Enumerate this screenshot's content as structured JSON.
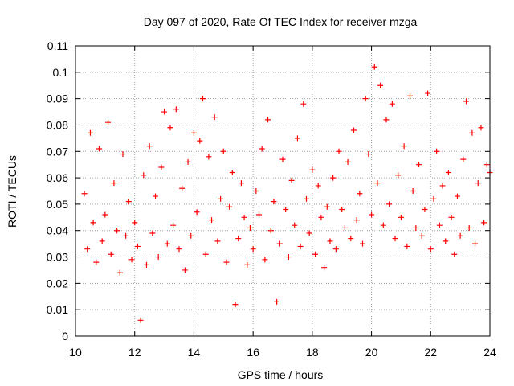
{
  "chart_data": {
    "type": "scatter",
    "title": "Day 097 of 2020, Rate Of TEC Index for receiver mzga",
    "xlabel": "GPS time / hours",
    "ylabel": "ROTI / TECUs",
    "xlim": [
      10,
      24
    ],
    "ylim": [
      0,
      0.11
    ],
    "x_ticks": [
      10,
      12,
      14,
      16,
      18,
      20,
      22,
      24
    ],
    "x_tick_labels": [
      "10",
      "12",
      "14",
      "16",
      "18",
      "20",
      "22",
      "24"
    ],
    "y_ticks": [
      0,
      0.01,
      0.02,
      0.03,
      0.04,
      0.05,
      0.06,
      0.07,
      0.08,
      0.09,
      0.1,
      0.11
    ],
    "y_tick_labels": [
      "0",
      "0.01",
      "0.02",
      "0.03",
      "0.04",
      "0.05",
      "0.06",
      "0.07",
      "0.08",
      "0.09",
      "0.1",
      "0.11"
    ],
    "grid": true,
    "marker": "+",
    "series": [
      {
        "name": "ROTI",
        "color": "#ff0000",
        "x": [
          10.3,
          10.4,
          10.5,
          10.6,
          10.7,
          10.8,
          10.9,
          11.0,
          11.1,
          11.2,
          11.3,
          11.4,
          11.5,
          11.6,
          11.7,
          11.8,
          11.9,
          12.0,
          12.1,
          12.2,
          12.3,
          12.4,
          12.5,
          12.6,
          12.7,
          12.8,
          12.9,
          13.0,
          13.1,
          13.2,
          13.3,
          13.4,
          13.5,
          13.6,
          13.7,
          13.8,
          13.9,
          14.0,
          14.1,
          14.2,
          14.3,
          14.4,
          14.5,
          14.6,
          14.7,
          14.8,
          14.9,
          15.0,
          15.1,
          15.2,
          15.3,
          15.4,
          15.5,
          15.6,
          15.7,
          15.8,
          15.9,
          16.0,
          16.1,
          16.2,
          16.3,
          16.4,
          16.5,
          16.6,
          16.7,
          16.8,
          16.9,
          17.0,
          17.1,
          17.2,
          17.3,
          17.4,
          17.5,
          17.6,
          17.7,
          17.8,
          17.9,
          18.0,
          18.1,
          18.2,
          18.3,
          18.4,
          18.5,
          18.6,
          18.7,
          18.8,
          18.9,
          19.0,
          19.1,
          19.2,
          19.3,
          19.4,
          19.5,
          19.6,
          19.7,
          19.8,
          19.9,
          20.0,
          20.1,
          20.2,
          20.3,
          20.4,
          20.5,
          20.6,
          20.7,
          20.8,
          20.9,
          21.0,
          21.1,
          21.2,
          21.3,
          21.4,
          21.5,
          21.6,
          21.7,
          21.8,
          21.9,
          22.0,
          22.1,
          22.2,
          22.3,
          22.4,
          22.5,
          22.6,
          22.7,
          22.8,
          22.9,
          23.0,
          23.1,
          23.2,
          23.3,
          23.4,
          23.5,
          23.6,
          23.7,
          23.8,
          23.9,
          24.0
        ],
        "values": [
          0.054,
          0.033,
          0.077,
          0.043,
          0.028,
          0.071,
          0.036,
          0.046,
          0.081,
          0.031,
          0.058,
          0.04,
          0.024,
          0.069,
          0.038,
          0.051,
          0.029,
          0.043,
          0.034,
          0.006,
          0.061,
          0.027,
          0.072,
          0.039,
          0.053,
          0.03,
          0.064,
          0.085,
          0.035,
          0.079,
          0.042,
          0.086,
          0.033,
          0.056,
          0.025,
          0.066,
          0.038,
          0.077,
          0.047,
          0.074,
          0.09,
          0.031,
          0.068,
          0.044,
          0.083,
          0.036,
          0.052,
          0.07,
          0.028,
          0.049,
          0.062,
          0.012,
          0.037,
          0.058,
          0.045,
          0.027,
          0.041,
          0.033,
          0.055,
          0.046,
          0.071,
          0.029,
          0.082,
          0.04,
          0.051,
          0.013,
          0.035,
          0.067,
          0.048,
          0.03,
          0.059,
          0.042,
          0.075,
          0.034,
          0.088,
          0.052,
          0.039,
          0.063,
          0.031,
          0.057,
          0.045,
          0.026,
          0.049,
          0.036,
          0.06,
          0.033,
          0.07,
          0.048,
          0.041,
          0.066,
          0.037,
          0.078,
          0.044,
          0.054,
          0.035,
          0.09,
          0.069,
          0.046,
          0.102,
          0.058,
          0.095,
          0.042,
          0.082,
          0.05,
          0.088,
          0.037,
          0.061,
          0.045,
          0.072,
          0.034,
          0.091,
          0.055,
          0.041,
          0.065,
          0.038,
          0.048,
          0.092,
          0.033,
          0.052,
          0.07,
          0.042,
          0.057,
          0.036,
          0.062,
          0.045,
          0.031,
          0.053,
          0.038,
          0.067,
          0.089,
          0.041,
          0.077,
          0.035,
          0.058,
          0.079,
          0.043,
          0.065,
          0.062
        ]
      }
    ]
  }
}
